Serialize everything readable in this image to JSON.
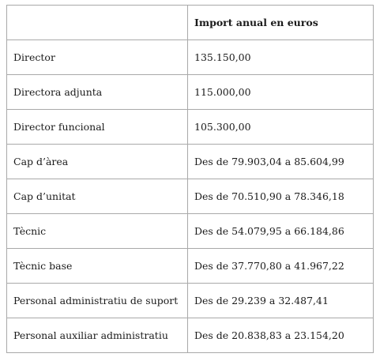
{
  "table": {
    "header": {
      "category": "",
      "amount": "Import anual en euros"
    },
    "rows": [
      {
        "category": "Director",
        "amount": "135.150,00"
      },
      {
        "category": "Directora adjunta",
        "amount": "115.000,00"
      },
      {
        "category": "Director funcional",
        "amount": "105.300,00"
      },
      {
        "category": "Cap d’àrea",
        "amount": "Des de 79.903,04 a 85.604,99"
      },
      {
        "category": "Cap d’unitat",
        "amount": "Des de 70.510,90 a 78.346,18"
      },
      {
        "category": "Tècnic",
        "amount": "Des de 54.079,95 a 66.184,86"
      },
      {
        "category": "Tècnic base",
        "amount": "Des de 37.770,80 a 41.967,22"
      },
      {
        "category": "Personal administratiu de suport",
        "amount": "Des de 29.239 a 32.487,41"
      },
      {
        "category": "Personal auxiliar administratiu",
        "amount": "Des de 20.838,83 a 23.154,20"
      }
    ]
  }
}
